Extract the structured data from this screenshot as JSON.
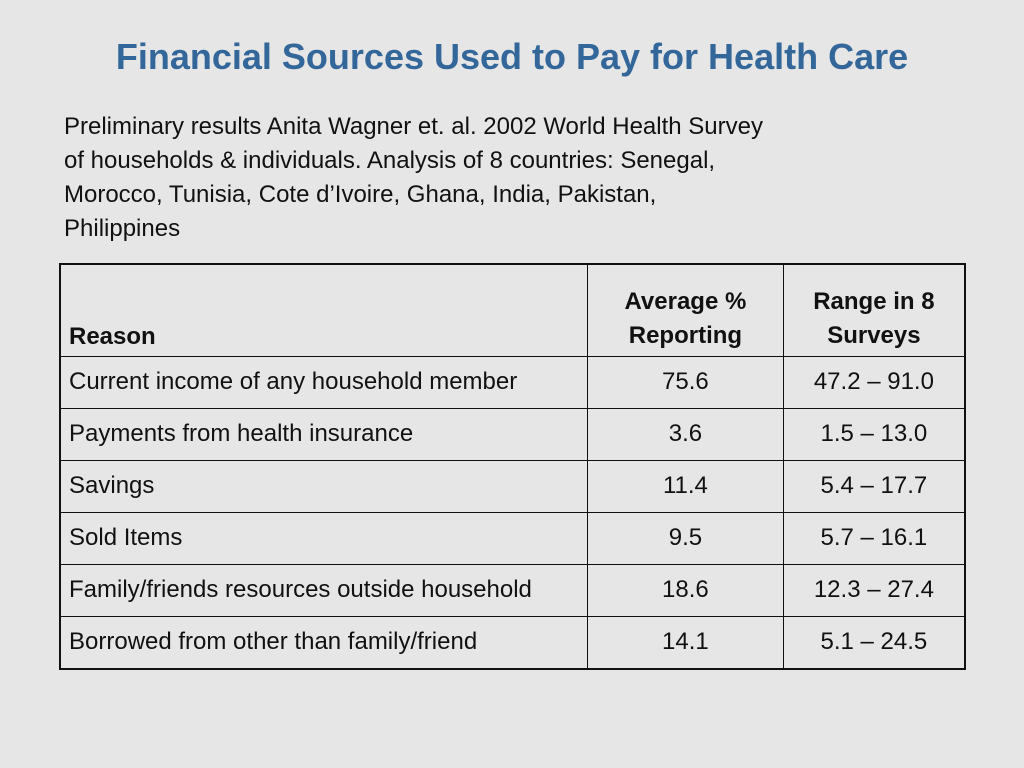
{
  "slide": {
    "title": "Financial Sources Used to Pay for Health Care",
    "subtitle_lines": [
      "Preliminary results Anita Wagner et. al. 2002 World Health Survey",
      "of households & individuals. Analysis of 8 countries: Senegal,",
      "Morocco, Tunisia, Cote d’Ivoire, Ghana, India, Pakistan,",
      "Philippines"
    ]
  },
  "table": {
    "headers": {
      "reason": "Reason",
      "average": "Average % Reporting",
      "range": "Range in 8 Surveys"
    },
    "rows": [
      {
        "reason": "Current income of any household member",
        "average": "75.6",
        "range": "47.2 – 91.0"
      },
      {
        "reason": "Payments from health insurance",
        "average": "3.6",
        "range": "1.5 – 13.0"
      },
      {
        "reason": "Savings",
        "average": "11.4",
        "range": "5.4 – 17.7"
      },
      {
        "reason": "Sold Items",
        "average": "9.5",
        "range": "5.7 – 16.1"
      },
      {
        "reason": "Family/friends resources outside household",
        "average": "18.6",
        "range": "12.3 – 27.4"
      },
      {
        "reason": "Borrowed from other than family/friend",
        "average": "14.1",
        "range": "5.1 – 24.5"
      }
    ]
  }
}
